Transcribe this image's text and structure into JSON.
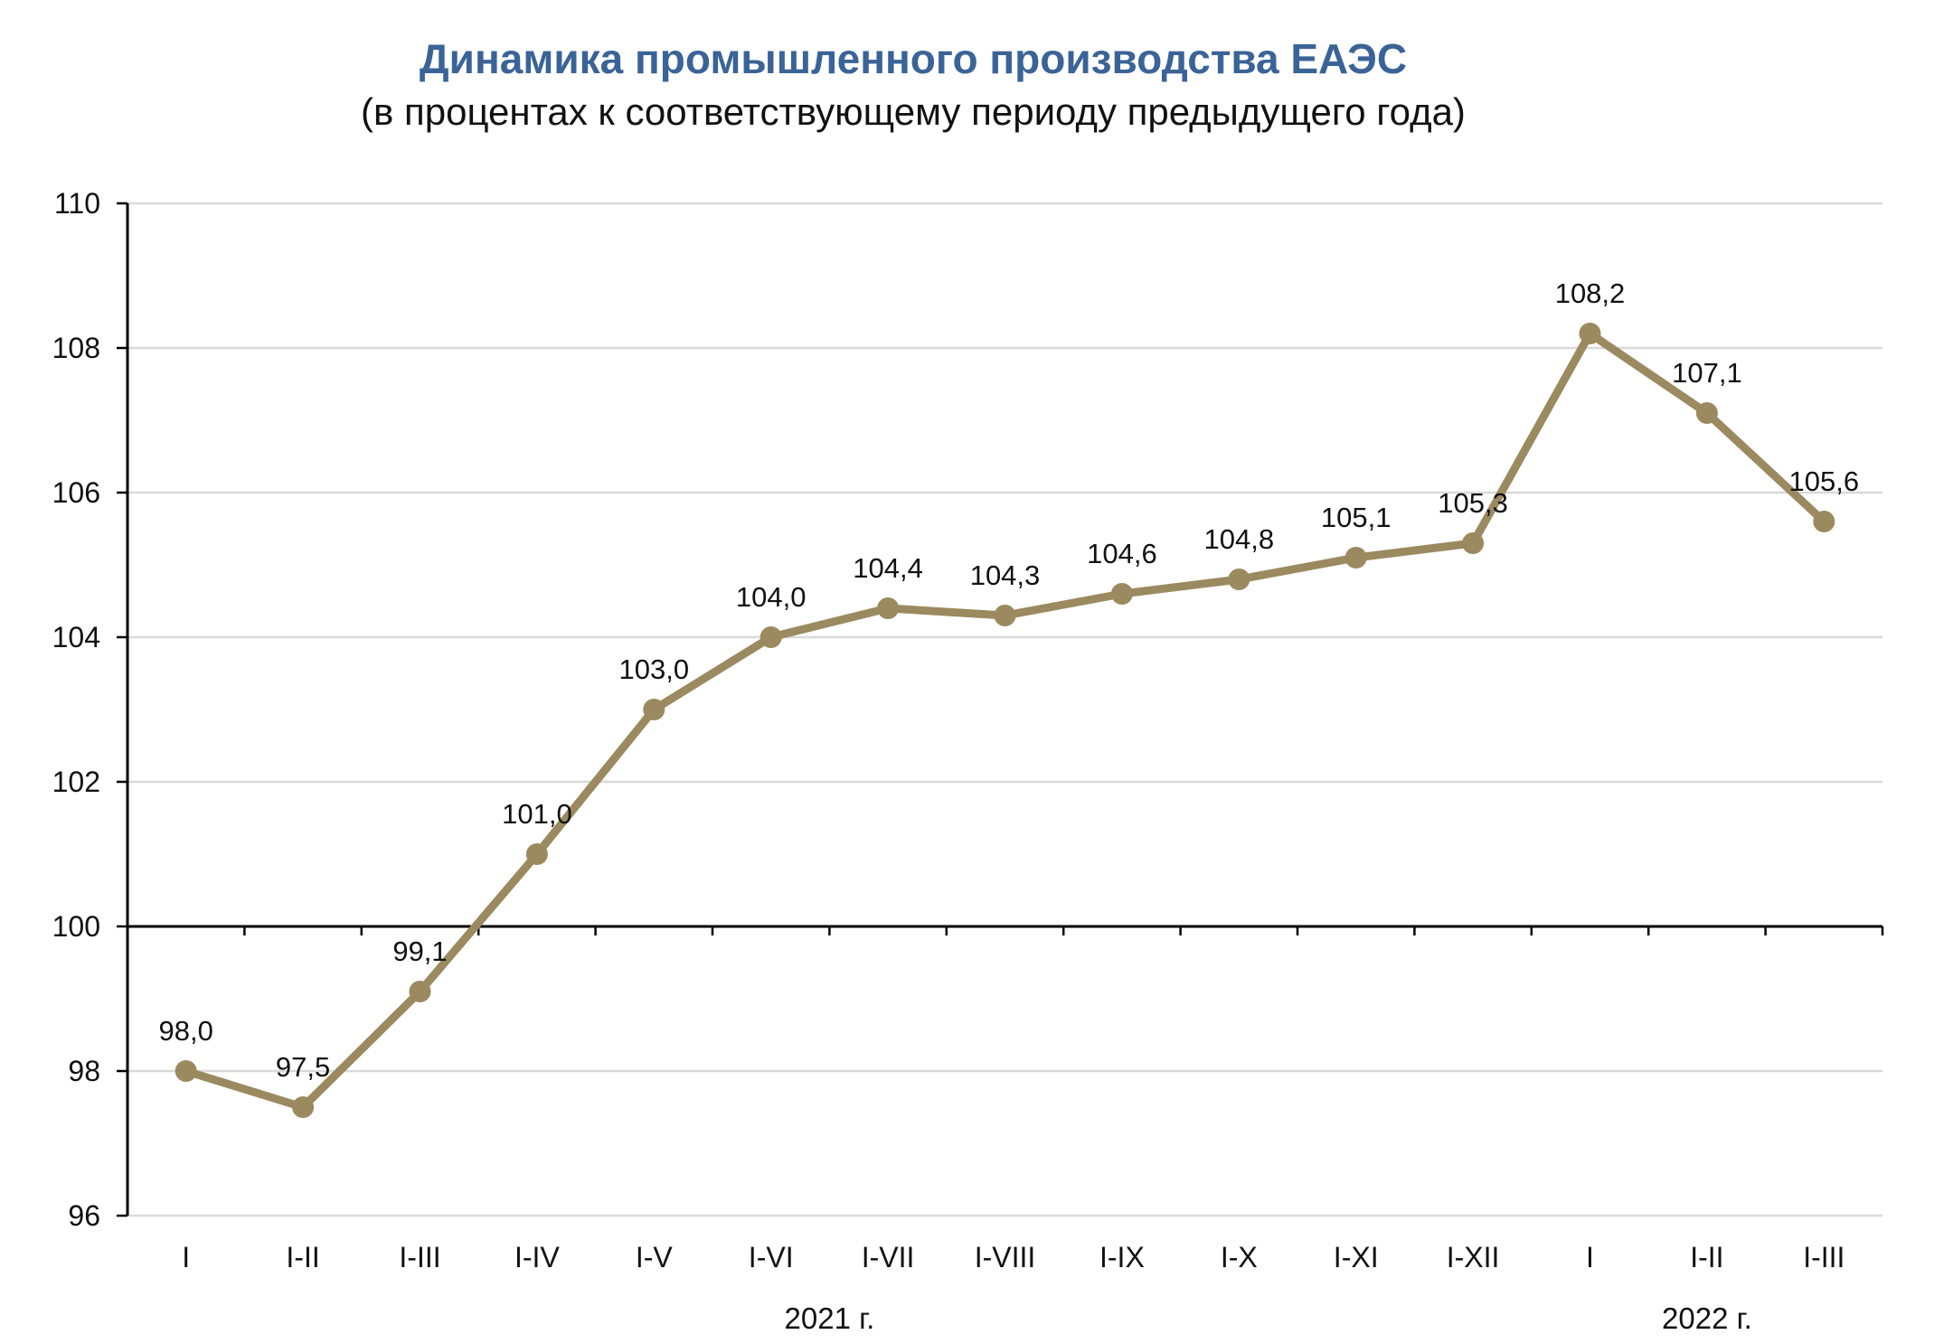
{
  "chart_data": {
    "type": "line",
    "title": "Динамика промышленного производства ЕАЭС",
    "subtitle": "(в процентах к соответствующему периоду предыдущего года)",
    "xlabel": "",
    "ylabel": "",
    "categories": [
      "I",
      "I-II",
      "I-III",
      "I-IV",
      "I-V",
      "I-VI",
      "I-VII",
      "I-VIII",
      "I-IX",
      "I-X",
      "I-XI",
      "I-XII",
      "I",
      "I-II",
      "I-III"
    ],
    "series": [
      {
        "values": [
          98.0,
          97.5,
          99.1,
          101.0,
          103.0,
          104.0,
          104.4,
          104.3,
          104.6,
          104.8,
          105.1,
          105.3,
          108.2,
          107.1,
          105.6
        ],
        "color": "#9b8a5f"
      }
    ],
    "data_labels": [
      "98,0",
      "97,5",
      "99,1",
      "101,0",
      "103,0",
      "104,0",
      "104,4",
      "104,3",
      "104,6",
      "104,8",
      "105,1",
      "105,3",
      "108,2",
      "107,1",
      "105,6"
    ],
    "year_groups": [
      {
        "label": "2021 г.",
        "categories": [
          "I",
          "I-II",
          "I-III",
          "I-IV",
          "I-V",
          "I-VI",
          "I-VII",
          "I-VIII",
          "I-IX",
          "I-X",
          "I-XI",
          "I-XII"
        ]
      },
      {
        "label": "2022 г.",
        "categories": [
          "I",
          "I-II",
          "I-III"
        ]
      }
    ],
    "ylim": [
      96,
      110
    ],
    "yticks": [
      96,
      98,
      100,
      102,
      104,
      106,
      108,
      110
    ],
    "x_axis_crosses_at": 100,
    "grid": true,
    "legend": "none"
  }
}
